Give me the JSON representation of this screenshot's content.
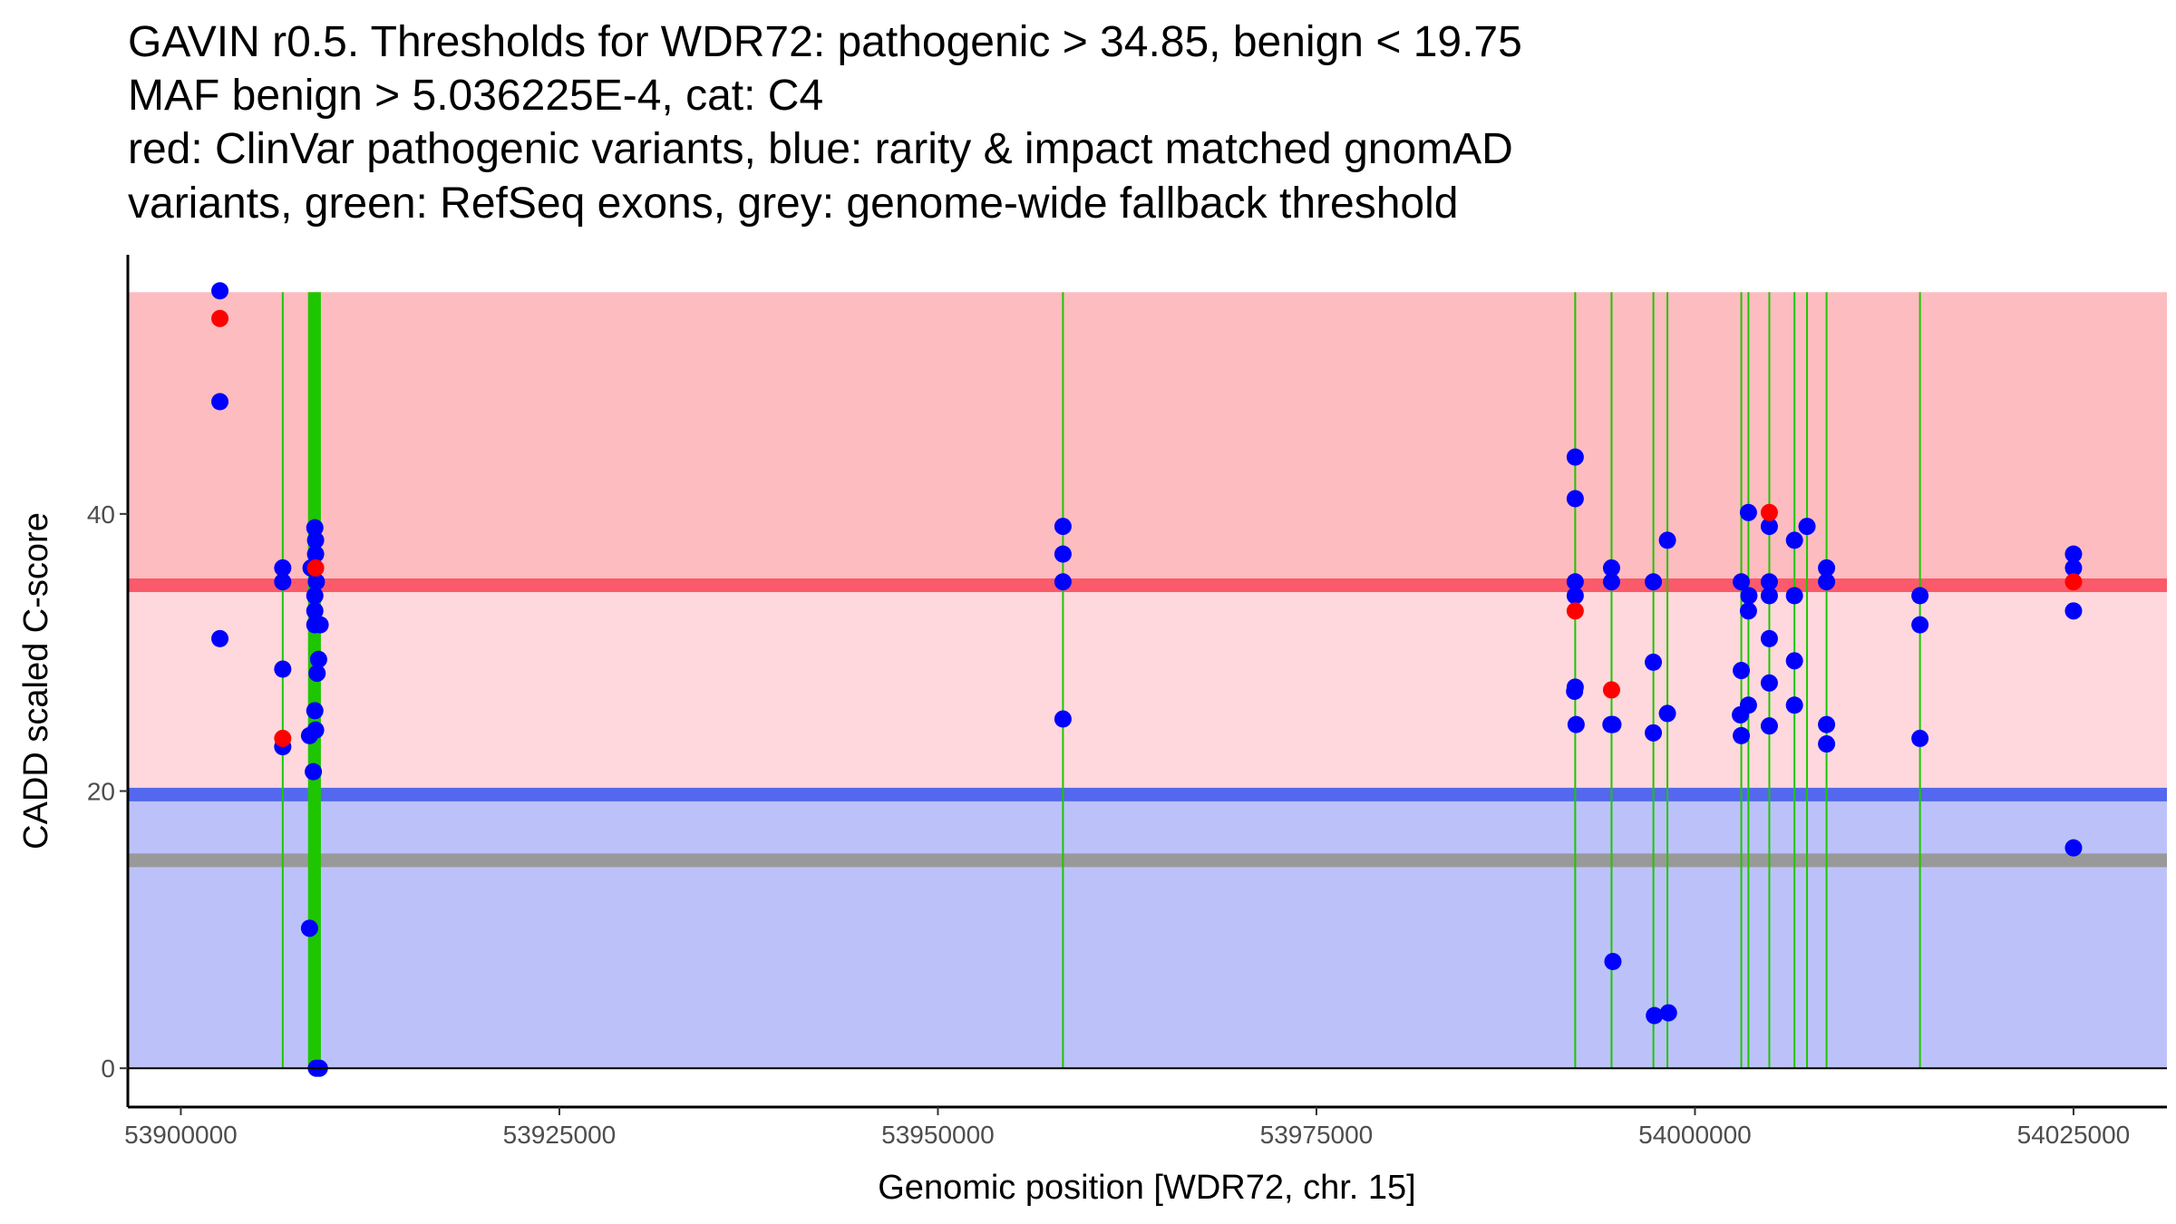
{
  "chart_data": {
    "type": "scatter",
    "title_lines": [
      "GAVIN r0.5. Thresholds for WDR72: pathogenic > 34.85, benign < 19.75",
      "MAF benign > 5.036225E-4, cat: C4",
      "red: ClinVar pathogenic variants, blue: rarity & impact matched gnomAD",
      "variants, green: RefSeq exons, grey: genome-wide fallback threshold"
    ],
    "xlabel": "Genomic position [WDR72, chr. 15]",
    "ylabel": "CADD scaled C-score",
    "xlim": [
      53896500,
      54031170
    ],
    "ylim": [
      -2.8,
      58.7
    ],
    "xticks": [
      53900000,
      53925000,
      53950000,
      53975000,
      54000000,
      54025000
    ],
    "xtick_labels": [
      "53900000",
      "53925000",
      "53950000",
      "53975000",
      "54000000",
      "54025000"
    ],
    "yticks": [
      0,
      20,
      40
    ],
    "ytick_labels": [
      "0",
      "20",
      "40"
    ],
    "grid": false,
    "thresholds": {
      "pathogenic": 34.85,
      "benign": 19.75,
      "genome_wide_fallback": 15,
      "max_score": 56
    },
    "colors": {
      "pathogenic_region": "#fdbcc0",
      "middle_region": "#fed8dc",
      "benign_region": "#bcc2f9",
      "pathogenic_line": "#fb5a6a",
      "benign_line": "#5468ef",
      "fallback_line": "#999999",
      "exon": "#1ec600",
      "clinvar": "#ff0000",
      "gnomad": "#0000ff"
    },
    "exons": [
      [
        53906700,
        53906760
      ],
      [
        53908400,
        53909250
      ],
      [
        53958230,
        53958290
      ],
      [
        53992060,
        53992120
      ],
      [
        53994460,
        53994520
      ],
      [
        53997220,
        53997290
      ],
      [
        53998150,
        53998210
      ],
      [
        54003030,
        54003090
      ],
      [
        54003500,
        54003560
      ],
      [
        54004880,
        54004940
      ],
      [
        54006550,
        54006590
      ],
      [
        54007370,
        54007430
      ],
      [
        54008680,
        54008700
      ],
      [
        54014840,
        54014880
      ]
    ],
    "series": [
      {
        "name": "gnomAD",
        "color": "#0000ff",
        "points": [
          [
            53902580,
            56.1
          ],
          [
            53902580,
            48.1
          ],
          [
            53902580,
            31.0
          ],
          [
            53906730,
            36.1
          ],
          [
            53906730,
            35.1
          ],
          [
            53906730,
            28.8
          ],
          [
            53906730,
            23.2
          ],
          [
            53908500,
            10.1
          ],
          [
            53908500,
            24.0
          ],
          [
            53908600,
            36.1
          ],
          [
            53908850,
            39.0
          ],
          [
            53908900,
            38.1
          ],
          [
            53908900,
            37.1
          ],
          [
            53908950,
            35.1
          ],
          [
            53908850,
            34.1
          ],
          [
            53908850,
            33.0
          ],
          [
            53908850,
            32.0
          ],
          [
            53909200,
            32.0
          ],
          [
            53909100,
            29.5
          ],
          [
            53909000,
            28.5
          ],
          [
            53908850,
            25.8
          ],
          [
            53908900,
            24.4
          ],
          [
            53908750,
            21.4
          ],
          [
            53908950,
            0
          ],
          [
            53909150,
            0
          ],
          [
            53958260,
            39.1
          ],
          [
            53958260,
            37.1
          ],
          [
            53958260,
            35.1
          ],
          [
            53958260,
            25.2
          ],
          [
            53992090,
            44.1
          ],
          [
            53992090,
            41.1
          ],
          [
            53992090,
            35.1
          ],
          [
            53992090,
            34.1
          ],
          [
            53992090,
            27.5
          ],
          [
            53992050,
            27.2
          ],
          [
            53992150,
            24.8
          ],
          [
            53994490,
            36.1
          ],
          [
            53994490,
            35.1
          ],
          [
            53994450,
            24.8
          ],
          [
            53994580,
            24.8
          ],
          [
            53994580,
            7.7
          ],
          [
            53997250,
            35.1
          ],
          [
            53997250,
            29.3
          ],
          [
            53997250,
            24.2
          ],
          [
            53997320,
            3.8
          ],
          [
            53998180,
            38.1
          ],
          [
            53998180,
            25.6
          ],
          [
            53998250,
            4.0
          ],
          [
            54003060,
            35.1
          ],
          [
            54003060,
            28.7
          ],
          [
            54003000,
            25.5
          ],
          [
            54003060,
            24.0
          ],
          [
            54003530,
            40.1
          ],
          [
            54003560,
            34.1
          ],
          [
            54003530,
            33.0
          ],
          [
            54003530,
            26.2
          ],
          [
            54004910,
            39.1
          ],
          [
            54004910,
            35.1
          ],
          [
            54004910,
            34.1
          ],
          [
            54004910,
            31.0
          ],
          [
            54004910,
            27.8
          ],
          [
            54004910,
            24.7
          ],
          [
            54006570,
            38.1
          ],
          [
            54006570,
            34.1
          ],
          [
            54006570,
            29.4
          ],
          [
            54006570,
            26.2
          ],
          [
            54007400,
            39.1
          ],
          [
            54008690,
            36.1
          ],
          [
            54008690,
            35.1
          ],
          [
            54008690,
            24.8
          ],
          [
            54008690,
            23.4
          ],
          [
            54014860,
            34.1
          ],
          [
            54014860,
            32.0
          ],
          [
            54014860,
            23.8
          ],
          [
            54025000,
            37.1
          ],
          [
            54025000,
            36.1
          ],
          [
            54025000,
            33.0
          ],
          [
            54025000,
            15.9
          ]
        ]
      },
      {
        "name": "ClinVar pathogenic",
        "color": "#ff0000",
        "points": [
          [
            53902580,
            54.1
          ],
          [
            53906730,
            23.8
          ],
          [
            53908900,
            36.1
          ],
          [
            53992090,
            33.0
          ],
          [
            53994490,
            27.3
          ],
          [
            54004910,
            40.1
          ],
          [
            54025000,
            35.1
          ]
        ]
      }
    ]
  }
}
